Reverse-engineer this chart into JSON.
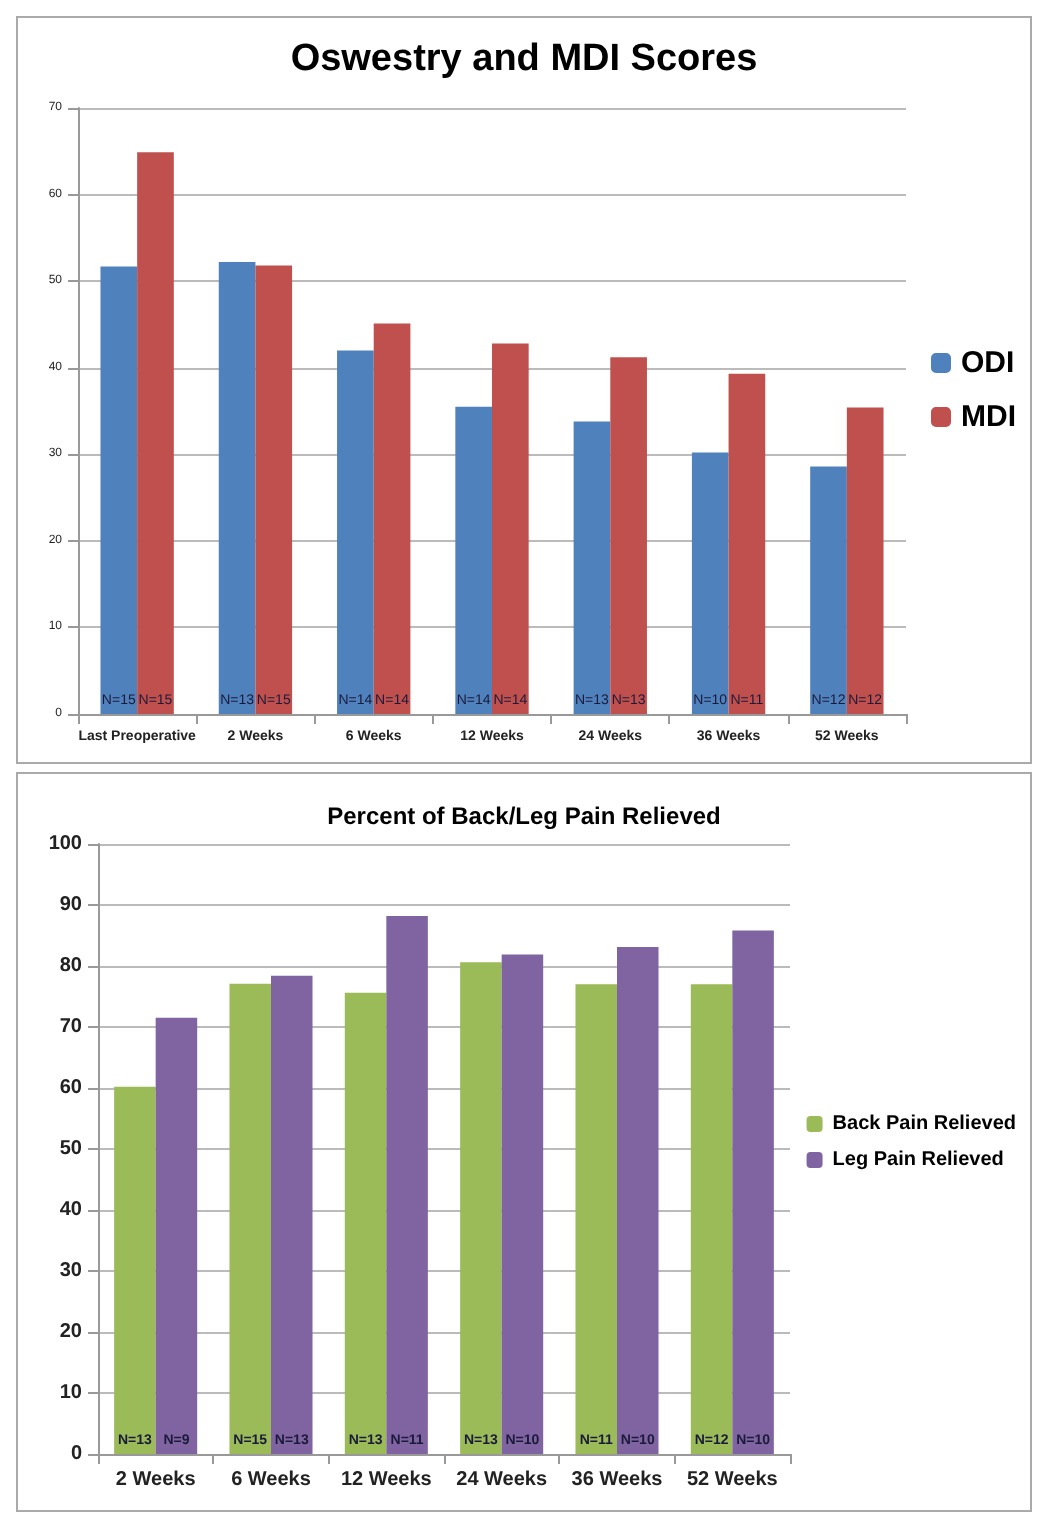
{
  "chart_data": [
    {
      "type": "bar",
      "title": "Oswestry and MDI Scores",
      "categories": [
        "Last Preoperative",
        "2 Weeks",
        "6 Weeks",
        "12 Weeks",
        "24 Weeks",
        "36 Weeks",
        "52 Weeks"
      ],
      "series": [
        {
          "name": "ODI",
          "color": "#4f81bd",
          "values": [
            51.7,
            52.2,
            42,
            35.5,
            33.8,
            30.2,
            28.6
          ]
        },
        {
          "name": "MDI",
          "color": "#c0504d",
          "values": [
            64.9,
            51.8,
            45.1,
            42.8,
            41.2,
            39.3,
            35.4
          ]
        }
      ],
      "annotations": [
        {
          "text": "N=15",
          "x": "Last Preoperative",
          "y": 0
        },
        {
          "text": "N=15",
          "x": "Last Preoperative",
          "y": 0
        },
        {
          "text": "N=13",
          "x": "2 Weeks",
          "y": 0
        },
        {
          "text": "N=15",
          "x": "2 Weeks",
          "y": 0
        },
        {
          "text": "N=14",
          "x": "6 Weeks",
          "y": 0
        },
        {
          "text": "N=14",
          "x": "6 Weeks",
          "y": 0
        },
        {
          "text": "N=14",
          "x": "12 Weeks",
          "y": 0
        },
        {
          "text": "N=14",
          "x": "12 Weeks",
          "y": 0
        },
        {
          "text": "N=13",
          "x": "24 Weeks",
          "y": 0
        },
        {
          "text": "N=13",
          "x": "24 Weeks",
          "y": 0
        },
        {
          "text": "N=10",
          "x": "36 Weeks",
          "y": 0
        },
        {
          "text": "N=11",
          "x": "36 Weeks",
          "y": 0
        },
        {
          "text": "N=12",
          "x": "52 Weeks",
          "y": 0
        },
        {
          "text": "N=12",
          "x": "52 Weeks",
          "y": 0
        }
      ],
      "ylim": [
        0,
        70
      ],
      "yticks": [
        0,
        10,
        20,
        30,
        40,
        50,
        60,
        70
      ],
      "grid": "y",
      "legend": "right"
    },
    {
      "type": "bar",
      "title": "Percent of Back/Leg Pain Relieved",
      "categories": [
        "2 Weeks",
        "6 Weeks",
        "12 Weeks",
        "24 Weeks",
        "36 Weeks",
        "52 Weeks"
      ],
      "series": [
        {
          "name": "Back Pain Relieved",
          "color": "#9bbb59",
          "values": [
            60.2,
            77.1,
            75.6,
            80.6,
            77,
            77
          ]
        },
        {
          "name": "Leg Pain Relieved",
          "color": "#8064a2",
          "values": [
            71.5,
            78.4,
            88.2,
            81.9,
            83.1,
            85.8
          ]
        }
      ],
      "annotations": [
        {
          "text": "N=13",
          "x": "2 Weeks",
          "y": 0
        },
        {
          "text": "N=9",
          "x": "2 Weeks",
          "y": 0
        },
        {
          "text": "N=15",
          "x": "6 Weeks",
          "y": 0
        },
        {
          "text": "N=13",
          "x": "6 Weeks",
          "y": 0
        },
        {
          "text": "N=13",
          "x": "12 Weeks",
          "y": 0
        },
        {
          "text": "N=11",
          "x": "12 Weeks",
          "y": 0
        },
        {
          "text": "N=13",
          "x": "24 Weeks",
          "y": 0
        },
        {
          "text": "N=10",
          "x": "24 Weeks",
          "y": 0
        },
        {
          "text": "N=11",
          "x": "36 Weeks",
          "y": 0
        },
        {
          "text": "N=10",
          "x": "36 Weeks",
          "y": 0
        },
        {
          "text": "N=12",
          "x": "52 Weeks",
          "y": 0
        },
        {
          "text": "N=10",
          "x": "52 Weeks",
          "y": 0
        }
      ],
      "ylim": [
        0,
        100
      ],
      "yticks": [
        0,
        10,
        20,
        30,
        40,
        50,
        60,
        70,
        80,
        90,
        100
      ],
      "grid": "y",
      "legend": "right"
    }
  ]
}
